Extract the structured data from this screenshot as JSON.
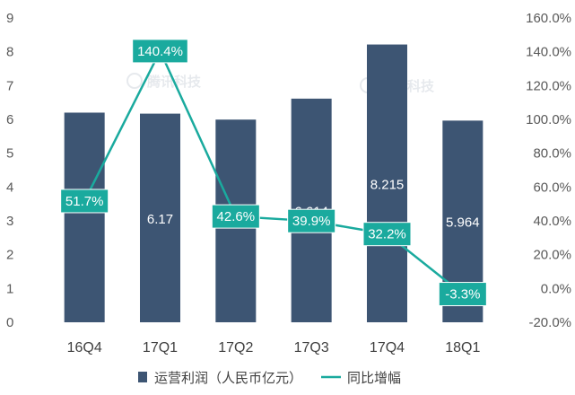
{
  "chart_data": {
    "type": "bar",
    "categories": [
      "16Q4",
      "17Q1",
      "17Q2",
      "17Q3",
      "17Q4",
      "18Q1"
    ],
    "series": [
      {
        "name": "运营利润（人民币亿元）",
        "type": "bar",
        "axis": "left",
        "values": [
          6.2,
          6.17,
          5.994,
          6.614,
          8.215,
          5.964
        ],
        "labels": [
          "",
          "6.17",
          "5.994",
          "6.614",
          "8.215",
          "5.964"
        ],
        "color": "#3d5573"
      },
      {
        "name": "同比增幅",
        "type": "line",
        "axis": "right",
        "values": [
          51.7,
          140.4,
          42.6,
          39.9,
          32.2,
          -3.3
        ],
        "labels": [
          "51.7%",
          "140.4%",
          "42.6%",
          "39.9%",
          "32.2%",
          "-3.3%"
        ],
        "color": "#1aaa9e"
      }
    ],
    "y_left": {
      "lim": [
        0,
        9
      ],
      "ticks": [
        "0",
        "1",
        "2",
        "3",
        "4",
        "5",
        "6",
        "7",
        "8",
        "9"
      ]
    },
    "y_right": {
      "lim": [
        -20,
        160
      ],
      "ticks": [
        "-20.0%",
        "0.0%",
        "20.0%",
        "40.0%",
        "60.0%",
        "80.0%",
        "100.0%",
        "120.0%",
        "140.0%",
        "160.0%"
      ]
    },
    "grid": false,
    "legend_position": "bottom-center"
  },
  "watermark": "腾讯科技"
}
